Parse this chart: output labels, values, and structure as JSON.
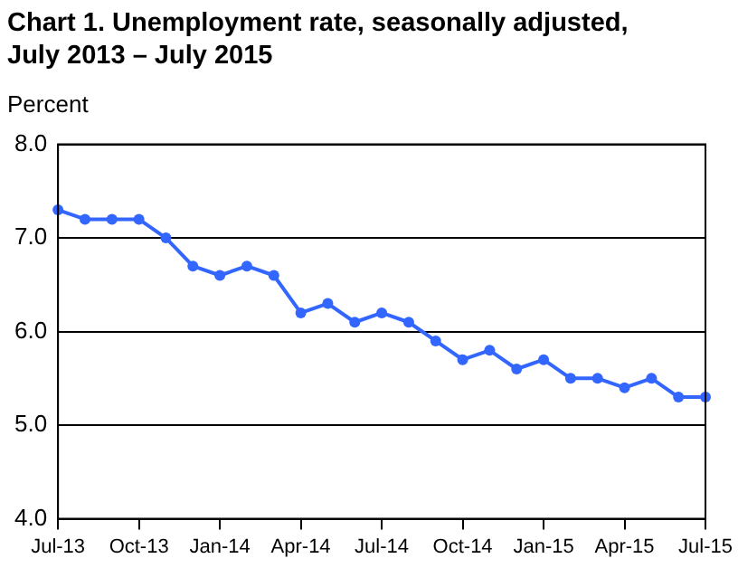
{
  "chart_data": {
    "type": "line",
    "title": "Chart 1. Unemployment rate, seasonally adjusted, July 2013 – July 2015",
    "ylabel": "Percent",
    "categories": [
      "Jul-13",
      null,
      null,
      "Oct-13",
      null,
      null,
      "Jan-14",
      null,
      null,
      "Apr-14",
      null,
      null,
      "Jul-14",
      null,
      null,
      "Oct-14",
      null,
      null,
      "Jan-15",
      null,
      null,
      "Apr-15",
      null,
      null,
      "Jul-15"
    ],
    "series": [
      {
        "color": "#3366ff",
        "values": [
          7.3,
          7.2,
          7.2,
          7.2,
          7.0,
          6.7,
          6.6,
          6.7,
          6.6,
          6.2,
          6.3,
          6.1,
          6.2,
          6.1,
          5.9,
          5.7,
          5.8,
          5.6,
          5.7,
          5.5,
          5.5,
          5.4,
          5.5,
          5.3,
          5.3
        ]
      }
    ],
    "ylim": [
      4,
      8
    ],
    "yticks": [
      {
        "value": 4,
        "label": "4.0"
      },
      {
        "value": 5,
        "label": "5.0"
      },
      {
        "value": 6,
        "label": "6.0"
      },
      {
        "value": 7,
        "label": "7.0"
      },
      {
        "value": 8,
        "label": "8.0"
      }
    ],
    "grid": "y",
    "legend": false,
    "marker": "circle",
    "line_style": "solid"
  }
}
